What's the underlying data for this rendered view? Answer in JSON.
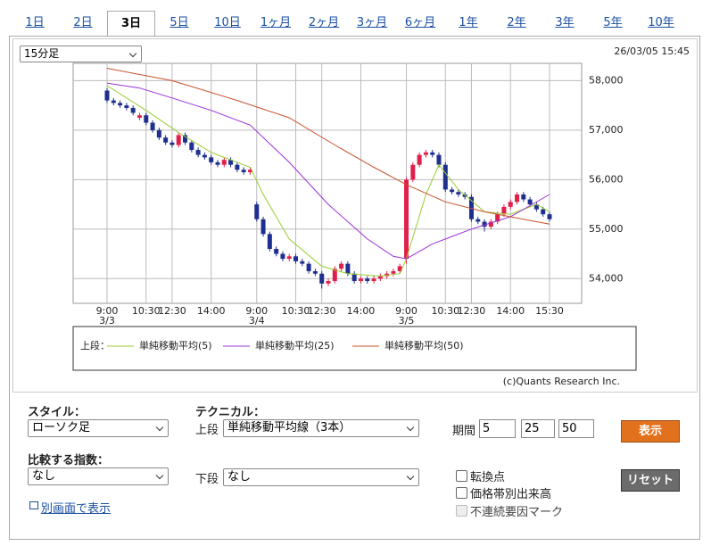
{
  "tabs": [
    "1日",
    "2日",
    "3日",
    "5日",
    "10日",
    "1ヶ月",
    "2ヶ月",
    "3ヶ月",
    "6ヶ月",
    "1年",
    "2年",
    "3年",
    "5年",
    "10年"
  ],
  "active_tab": 2,
  "interval_select": "15分足",
  "timestamp": "26/03/05 15:45",
  "chart_data": {
    "type": "candlestick",
    "categories": [
      "9:00",
      null,
      null,
      null,
      null,
      null,
      "10:30",
      null,
      null,
      null,
      "12:30",
      null,
      null,
      null,
      null,
      null,
      "14:00",
      null,
      null,
      null,
      null,
      null,
      null,
      "9:00",
      null,
      null,
      null,
      null,
      null,
      "10:30",
      null,
      null,
      null,
      "12:30",
      null,
      null,
      null,
      null,
      null,
      "14:00",
      null,
      null,
      null,
      null,
      null,
      null,
      "9:00",
      null,
      null,
      null,
      null,
      null,
      "10:30",
      null,
      null,
      null,
      "12:30",
      null,
      null,
      null,
      null,
      null,
      "14:00",
      null,
      null,
      null,
      null,
      null,
      "15:30"
    ],
    "dates": [
      "3/3",
      null,
      null,
      null,
      null,
      null,
      null,
      null,
      null,
      null,
      null,
      null,
      null,
      null,
      null,
      null,
      null,
      null,
      null,
      null,
      null,
      null,
      null,
      "3/4",
      null,
      null,
      null,
      null,
      null,
      null,
      null,
      null,
      null,
      null,
      null,
      null,
      null,
      null,
      null,
      null,
      null,
      null,
      null,
      null,
      null,
      null,
      "3/5",
      null,
      null,
      null,
      null,
      null,
      null,
      null,
      null,
      null,
      null,
      null,
      null,
      null,
      null,
      null,
      null,
      null,
      null,
      null,
      null,
      null,
      null
    ],
    "candles": [
      [
        57800,
        57850,
        57550,
        57600
      ],
      [
        57600,
        57650,
        57500,
        57550
      ],
      [
        57550,
        57600,
        57450,
        57500
      ],
      [
        57500,
        57550,
        57400,
        57450
      ],
      [
        57450,
        57500,
        57300,
        57350
      ],
      [
        57250,
        57350,
        57200,
        57300
      ],
      [
        57300,
        57350,
        57100,
        57150
      ],
      [
        57150,
        57200,
        56950,
        57000
      ],
      [
        57000,
        57050,
        56800,
        56850
      ],
      [
        56850,
        56900,
        56700,
        56750
      ],
      [
        56750,
        56800,
        56650,
        56700
      ],
      [
        56700,
        56950,
        56650,
        56900
      ],
      [
        56900,
        56950,
        56700,
        56750
      ],
      [
        56750,
        56800,
        56550,
        56600
      ],
      [
        56600,
        56650,
        56450,
        56500
      ],
      [
        56500,
        56550,
        56400,
        56450
      ],
      [
        56450,
        56500,
        56300,
        56350
      ],
      [
        56350,
        56400,
        56250,
        56300
      ],
      [
        56300,
        56450,
        56250,
        56400
      ],
      [
        56400,
        56450,
        56250,
        56300
      ],
      [
        56300,
        56350,
        56150,
        56200
      ],
      [
        56200,
        56250,
        56100,
        56150
      ],
      [
        56150,
        56250,
        56100,
        56200
      ],
      [
        55500,
        55550,
        55150,
        55200
      ],
      [
        55200,
        55250,
        54850,
        54900
      ],
      [
        54900,
        54950,
        54550,
        54600
      ],
      [
        54600,
        54650,
        54450,
        54500
      ],
      [
        54500,
        54550,
        54350,
        54400
      ],
      [
        54400,
        54500,
        54350,
        54450
      ],
      [
        54450,
        54500,
        54300,
        54350
      ],
      [
        54350,
        54400,
        54250,
        54300
      ],
      [
        54300,
        54350,
        54100,
        54150
      ],
      [
        54150,
        54200,
        54050,
        54100
      ],
      [
        54100,
        54150,
        53800,
        53900
      ],
      [
        53900,
        54000,
        53850,
        53950
      ],
      [
        53950,
        54250,
        53900,
        54200
      ],
      [
        54200,
        54350,
        54150,
        54300
      ],
      [
        54300,
        54350,
        54050,
        54100
      ],
      [
        54100,
        54150,
        53900,
        53950
      ],
      [
        53950,
        54050,
        53900,
        54000
      ],
      [
        54000,
        54050,
        53900,
        53950
      ],
      [
        53950,
        54050,
        53900,
        54000
      ],
      [
        54000,
        54100,
        53950,
        54050
      ],
      [
        54050,
        54150,
        54000,
        54100
      ],
      [
        54100,
        54200,
        54050,
        54150
      ],
      [
        54150,
        54300,
        54100,
        54250
      ],
      [
        54400,
        56050,
        54300,
        56000
      ],
      [
        56000,
        56350,
        55950,
        56300
      ],
      [
        56300,
        56550,
        56250,
        56500
      ],
      [
        56500,
        56600,
        56450,
        56550
      ],
      [
        56550,
        56600,
        56450,
        56500
      ],
      [
        56500,
        56550,
        56250,
        56300
      ],
      [
        56300,
        56350,
        55750,
        55800
      ],
      [
        55800,
        55850,
        55700,
        55750
      ],
      [
        55750,
        55800,
        55650,
        55700
      ],
      [
        55700,
        55750,
        55600,
        55650
      ],
      [
        55650,
        55700,
        55150,
        55200
      ],
      [
        55200,
        55250,
        55100,
        55150
      ],
      [
        55150,
        55200,
        54950,
        55050
      ],
      [
        55050,
        55200,
        55000,
        55150
      ],
      [
        55150,
        55350,
        55100,
        55300
      ],
      [
        55300,
        55500,
        55250,
        55450
      ],
      [
        55450,
        55600,
        55400,
        55550
      ],
      [
        55550,
        55750,
        55500,
        55700
      ],
      [
        55700,
        55750,
        55550,
        55600
      ],
      [
        55600,
        55650,
        55450,
        55500
      ],
      [
        55500,
        55550,
        55350,
        55400
      ],
      [
        55400,
        55450,
        55250,
        55300
      ],
      [
        55300,
        55350,
        55150,
        55200
      ]
    ],
    "up_color": "#e0204a",
    "down_color": "#1f2f8f",
    "series": [
      {
        "name": "単純移動平均(5)",
        "color": "#9acd32",
        "x": [
          0,
          6,
          11,
          16,
          22,
          24,
          28,
          33,
          37,
          42,
          45,
          46,
          49,
          51,
          54,
          58,
          62,
          66,
          68
        ],
        "values": [
          57900,
          57400,
          56950,
          56550,
          56250,
          55700,
          54800,
          54250,
          54100,
          54050,
          54100,
          54400,
          55700,
          56300,
          55800,
          55350,
          55300,
          55500,
          55350
        ]
      },
      {
        "name": "単純移動平均(25)",
        "color": "#9b30d9",
        "x": [
          0,
          5,
          10,
          16,
          22,
          28,
          34,
          40,
          44,
          46,
          50,
          56,
          62,
          68
        ],
        "values": [
          57950,
          57850,
          57650,
          57400,
          57100,
          56350,
          55500,
          54800,
          54450,
          54400,
          54700,
          55000,
          55250,
          55700
        ]
      },
      {
        "name": "単純移動平均(50)",
        "color": "#c8502a",
        "x": [
          0,
          10,
          20,
          28,
          35,
          41,
          46,
          52,
          58,
          64,
          68
        ],
        "values": [
          58250,
          58000,
          57600,
          57250,
          56700,
          56250,
          55900,
          55550,
          55350,
          55200,
          55100
        ]
      }
    ],
    "ylim": [
      53500,
      58350
    ],
    "yticks": [
      {
        "value": 54000,
        "label": "54,000"
      },
      {
        "value": 55000,
        "label": "55,000"
      },
      {
        "value": 56000,
        "label": "56,000"
      },
      {
        "value": 57000,
        "label": "57,000"
      },
      {
        "value": 58000,
        "label": "58,000"
      }
    ],
    "grid": true,
    "legend_prefix": "上段："
  },
  "copyright": "(c)Quants Research Inc.",
  "controls": {
    "style_label": "スタイル：",
    "style_select": "ローソク足",
    "technical_label": "テクニカル：",
    "upper_label": "上段",
    "upper_select": "単純移動平均線（3本）",
    "period_label": "期間",
    "periods": [
      "5",
      "25",
      "50"
    ],
    "show_button": "表示",
    "compare_label": "比較する指数：",
    "compare_select": "なし",
    "lower_label": "下段",
    "lower_select": "なし",
    "checkboxes": [
      "転換点",
      "価格帯別出来高",
      "不連続要因マーク"
    ],
    "reset_button": "リセット",
    "new_window_link": "別画面で表示"
  }
}
